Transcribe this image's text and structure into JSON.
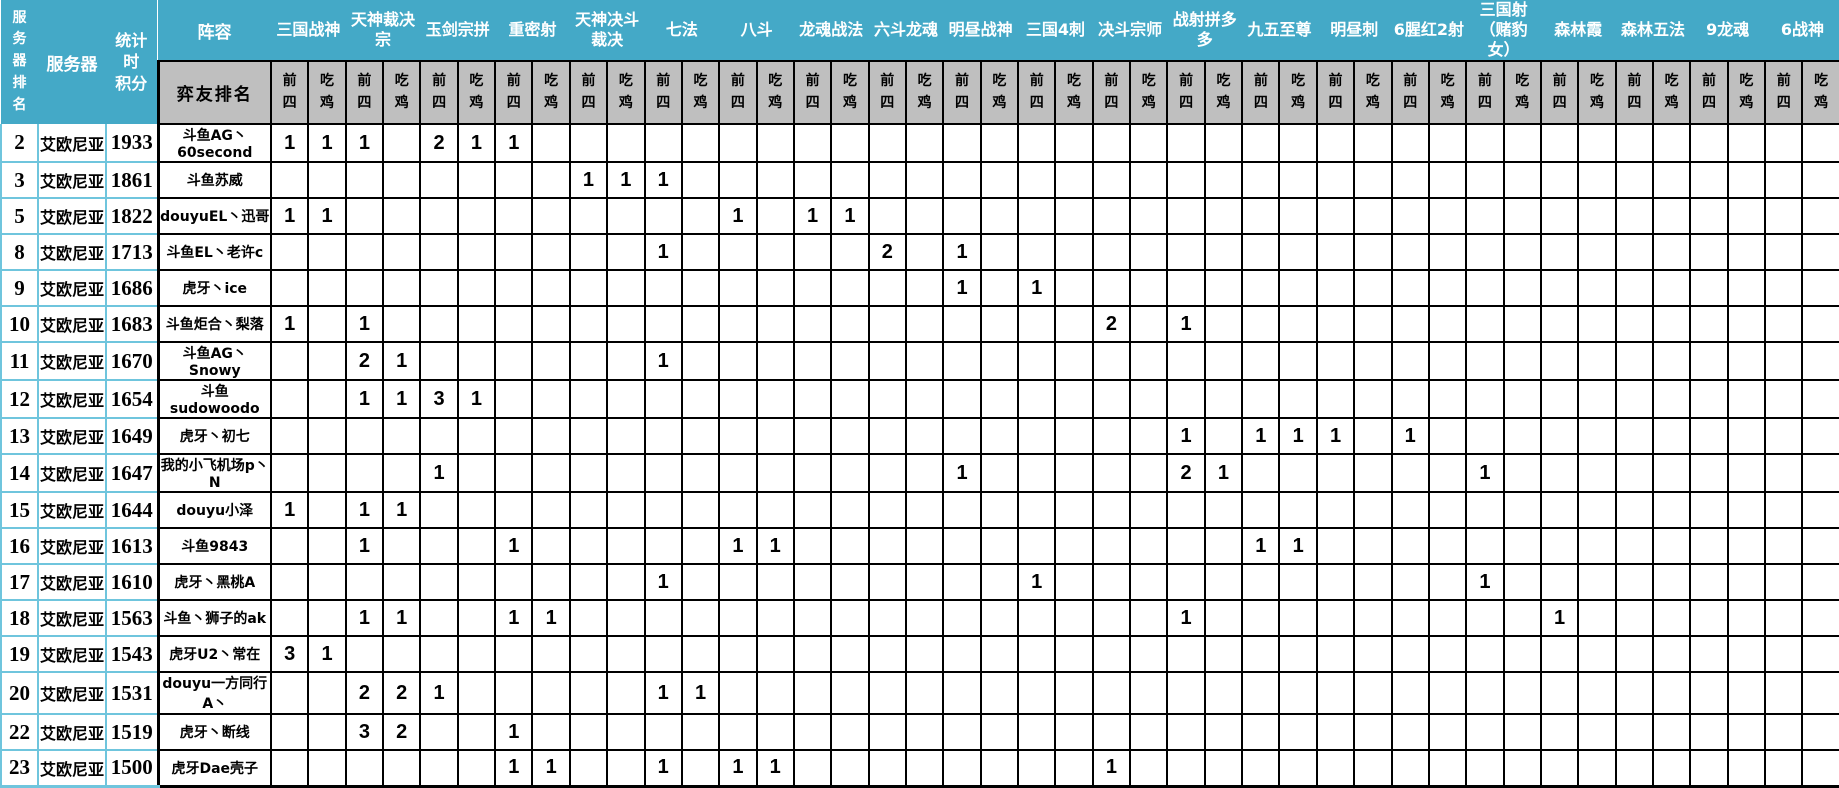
{
  "colors": {
    "header_teal": "#44a9c7",
    "light_blue_grid": "#6fc5dd",
    "subheader_gray": "#bfbfbf",
    "grid_black": "#000000"
  },
  "header": {
    "rank_label": "服\n务\n器\n排\n名",
    "server_label": "服务器",
    "score_label": "统计\n时\n积分",
    "lineup_label": "阵容",
    "player_label": "弈友排名",
    "sub": {
      "top4": "前\n四",
      "win": "吃\n鸡"
    },
    "groups": [
      "三国战神",
      "天神裁决\n宗",
      "玉剑宗拼",
      "重密射",
      "天神决斗\n裁决",
      "七法",
      "八斗",
      "龙魂战法",
      "六斗龙魂",
      "明昼战神",
      "三国4刺",
      "决斗宗师",
      "战射拼多\n多",
      "九五至尊",
      "明昼刺",
      "6腥红2射",
      "三国射\n（赌豹\n女）",
      "森林霞",
      "森林五法",
      "9龙魂",
      "6战神"
    ]
  },
  "rows": [
    {
      "rank": "2",
      "server": "艾欧尼亚",
      "score": "1933",
      "player": "斗鱼AG丶60second",
      "cells": {
        "0": "1",
        "1": "1",
        "2": "1",
        "4": "2",
        "5": "1",
        "6": "1"
      }
    },
    {
      "rank": "3",
      "server": "艾欧尼亚",
      "score": "1861",
      "player": "斗鱼苏威",
      "cells": {
        "8": "1",
        "9": "1",
        "10": "1"
      }
    },
    {
      "rank": "5",
      "server": "艾欧尼亚",
      "score": "1822",
      "player": "douyuEL丶迅哥",
      "cells": {
        "0": "1",
        "1": "1",
        "12": "1",
        "14": "1",
        "15": "1"
      }
    },
    {
      "rank": "8",
      "server": "艾欧尼亚",
      "score": "1713",
      "player": "斗鱼EL丶老许c",
      "cells": {
        "10": "1",
        "16": "2",
        "18": "1"
      }
    },
    {
      "rank": "9",
      "server": "艾欧尼亚",
      "score": "1686",
      "player": "虎牙丶ice",
      "cells": {
        "18": "1",
        "20": "1"
      }
    },
    {
      "rank": "10",
      "server": "艾欧尼亚",
      "score": "1683",
      "player": "斗鱼炬合丶梨落",
      "cells": {
        "0": "1",
        "2": "1",
        "22": "2",
        "24": "1"
      }
    },
    {
      "rank": "11",
      "server": "艾欧尼亚",
      "score": "1670",
      "player": "斗鱼AG丶Snowy",
      "cells": {
        "2": "2",
        "3": "1",
        "10": "1"
      }
    },
    {
      "rank": "12",
      "server": "艾欧尼亚",
      "score": "1654",
      "player": "斗鱼sudowoodo",
      "cells": {
        "2": "1",
        "3": "1",
        "4": "3",
        "5": "1"
      }
    },
    {
      "rank": "13",
      "server": "艾欧尼亚",
      "score": "1649",
      "player": "虎牙丶初七",
      "cells": {
        "24": "1",
        "26": "1",
        "27": "1",
        "28": "1",
        "30": "1"
      }
    },
    {
      "rank": "14",
      "server": "艾欧尼亚",
      "score": "1647",
      "player": "我的小飞机场p丶N",
      "cells": {
        "4": "1",
        "18": "1",
        "24": "2",
        "25": "1",
        "32": "1"
      }
    },
    {
      "rank": "15",
      "server": "艾欧尼亚",
      "score": "1644",
      "player": "douyu小泽",
      "cells": {
        "0": "1",
        "2": "1",
        "3": "1"
      }
    },
    {
      "rank": "16",
      "server": "艾欧尼亚",
      "score": "1613",
      "player": "斗鱼9843",
      "cells": {
        "2": "1",
        "6": "1",
        "12": "1",
        "13": "1",
        "26": "1",
        "27": "1"
      }
    },
    {
      "rank": "17",
      "server": "艾欧尼亚",
      "score": "1610",
      "player": "虎牙丶黑桃A",
      "cells": {
        "10": "1",
        "20": "1",
        "32": "1"
      }
    },
    {
      "rank": "18",
      "server": "艾欧尼亚",
      "score": "1563",
      "player": "斗鱼丶狮子的ak",
      "cells": {
        "2": "1",
        "3": "1",
        "6": "1",
        "7": "1",
        "24": "1",
        "34": "1"
      }
    },
    {
      "rank": "19",
      "server": "艾欧尼亚",
      "score": "1543",
      "player": "虎牙U2丶常在",
      "cells": {
        "0": "3",
        "1": "1"
      }
    },
    {
      "rank": "20",
      "server": "艾欧尼亚",
      "score": "1531",
      "player": "douyu一方同行A丶",
      "cells": {
        "2": "2",
        "3": "2",
        "4": "1",
        "10": "1",
        "11": "1"
      }
    },
    {
      "rank": "22",
      "server": "艾欧尼亚",
      "score": "1519",
      "player": "虎牙丶断线",
      "cells": {
        "2": "3",
        "3": "2",
        "6": "1"
      }
    },
    {
      "rank": "23",
      "server": "艾欧尼亚",
      "score": "1500",
      "player": "虎牙Dae壳子",
      "cells": {
        "6": "1",
        "7": "1",
        "10": "1",
        "12": "1",
        "13": "1",
        "22": "1"
      }
    }
  ]
}
